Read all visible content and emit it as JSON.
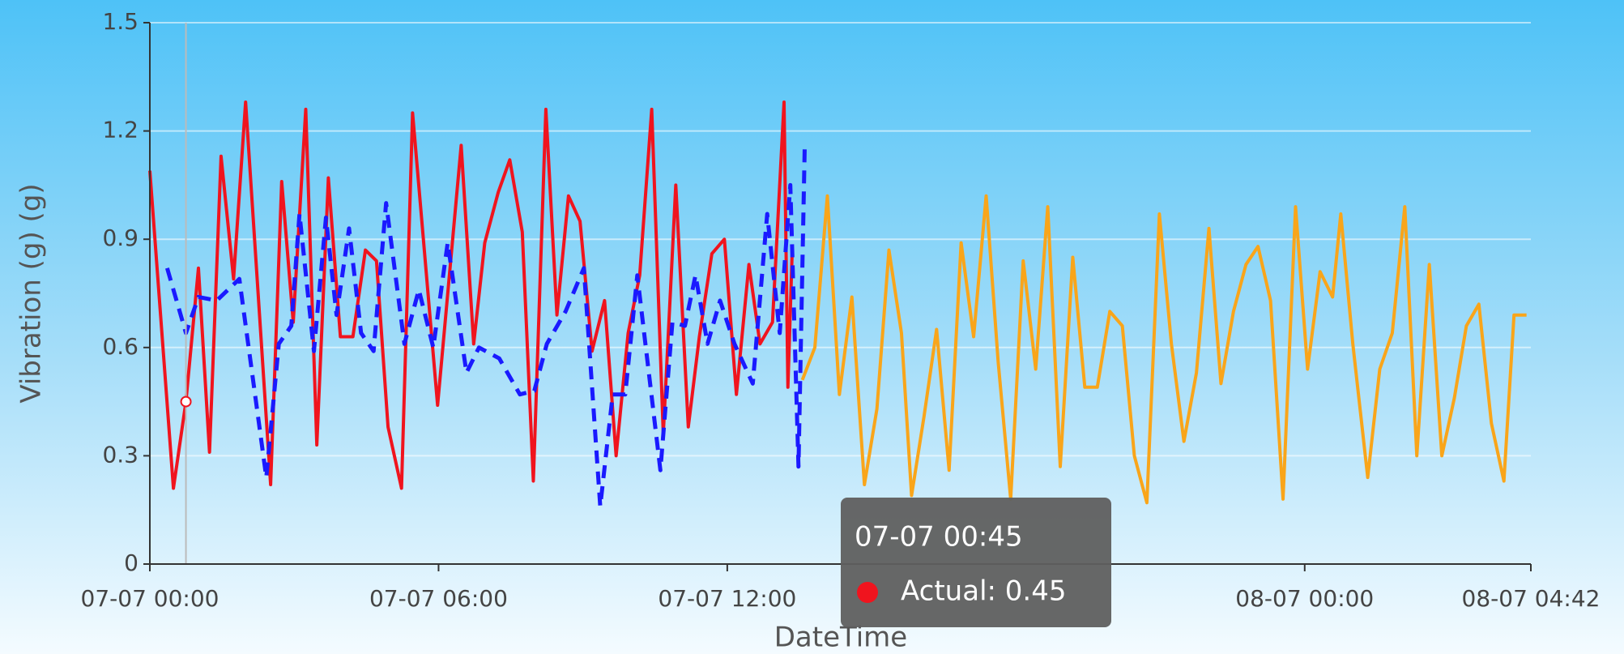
{
  "chart_data": {
    "type": "line",
    "y_label": "Vibration (g) (g)",
    "x_label": "DateTime",
    "xlim": [
      0,
      28.7
    ],
    "xticks": [
      {
        "value": 0,
        "label": "07-07 00:00"
      },
      {
        "value": 6,
        "label": "07-07 06:00"
      },
      {
        "value": 12,
        "label": "07-07 12:00"
      },
      {
        "value": 24,
        "label": "08-07 00:00"
      },
      {
        "value": 28.7,
        "label": "08-07 04:42"
      }
    ],
    "ylim": [
      0,
      1.5
    ],
    "yticks": [
      0,
      0.3,
      0.6,
      0.9,
      1.2,
      1.5
    ],
    "grid": true,
    "series": [
      {
        "name": "Actual",
        "color": "#f0141e",
        "dash": false,
        "x": [
          0,
          0.49,
          0.75,
          1.01,
          1.24,
          1.48,
          1.74,
          1.99,
          2.51,
          2.74,
          2.98,
          3.24,
          3.47,
          3.71,
          3.96,
          4.22,
          4.48,
          4.71,
          4.95,
          5.23,
          5.46,
          5.98,
          6.47,
          6.73,
          6.96,
          7.24,
          7.48,
          7.74,
          7.97,
          8.23,
          8.46,
          8.7,
          8.94,
          9.19,
          9.45,
          9.69,
          9.94,
          10.18,
          10.43,
          10.67,
          10.93,
          11.19,
          11.42,
          11.68,
          11.94,
          12.19,
          12.45,
          12.68,
          12.94,
          13.18,
          13.26,
          13.35
        ],
        "values": [
          1.09,
          0.21,
          0.45,
          0.82,
          0.31,
          1.13,
          0.79,
          1.28,
          0.22,
          1.06,
          0.67,
          1.26,
          0.33,
          1.07,
          0.63,
          0.63,
          0.87,
          0.84,
          0.38,
          0.21,
          1.25,
          0.44,
          1.16,
          0.61,
          0.89,
          1.03,
          1.12,
          0.92,
          0.23,
          1.26,
          0.69,
          1.02,
          0.95,
          0.59,
          0.73,
          0.3,
          0.64,
          0.8,
          1.26,
          0.36,
          1.05,
          0.38,
          0.63,
          0.86,
          0.9,
          0.47,
          0.83,
          0.61,
          0.67,
          1.28,
          0.49,
          0.87
        ]
      },
      {
        "color": "#1a1aff",
        "dash": true,
        "x": [
          0.36,
          0.75,
          1.01,
          1.39,
          1.86,
          2.42,
          2.68,
          2.94,
          3.11,
          3.41,
          3.66,
          3.88,
          4.14,
          4.39,
          4.65,
          4.91,
          5.29,
          5.59,
          5.89,
          6.19,
          6.58,
          6.84,
          7.26,
          7.69,
          7.99,
          8.25,
          8.64,
          9.02,
          9.36,
          9.62,
          9.88,
          10.13,
          10.61,
          10.86,
          11.12,
          11.34,
          11.59,
          11.85,
          12.15,
          12.53,
          12.83,
          13.09,
          13.31,
          13.48,
          13.61
        ],
        "values": [
          0.82,
          0.64,
          0.74,
          0.73,
          0.79,
          0.24,
          0.61,
          0.66,
          0.97,
          0.59,
          0.96,
          0.69,
          0.93,
          0.64,
          0.59,
          1.0,
          0.61,
          0.76,
          0.6,
          0.89,
          0.53,
          0.6,
          0.57,
          0.47,
          0.48,
          0.61,
          0.7,
          0.82,
          0.16,
          0.47,
          0.47,
          0.8,
          0.26,
          0.67,
          0.66,
          0.8,
          0.61,
          0.73,
          0.61,
          0.5,
          0.97,
          0.64,
          1.05,
          0.27,
          1.16
        ]
      },
      {
        "color": "#f9a51a",
        "dash": false,
        "x": [
          13.56,
          13.82,
          14.08,
          14.33,
          14.59,
          14.85,
          15.11,
          15.36,
          15.62,
          15.83,
          16.09,
          16.35,
          16.61,
          16.86,
          17.12,
          17.38,
          17.63,
          17.89,
          18.15,
          18.41,
          18.66,
          18.92,
          19.18,
          19.43,
          19.69,
          19.95,
          20.21,
          20.46,
          20.72,
          20.98,
          21.23,
          21.49,
          21.75,
          22.01,
          22.26,
          22.52,
          22.78,
          23.03,
          23.29,
          23.55,
          23.81,
          24.06,
          24.32,
          24.58,
          24.75,
          25.0,
          25.31,
          25.56,
          25.82,
          26.08,
          26.33,
          26.59,
          26.85,
          27.11,
          27.36,
          27.62,
          27.88,
          28.14,
          28.35,
          28.61
        ],
        "values": [
          0.51,
          0.6,
          1.02,
          0.47,
          0.74,
          0.22,
          0.43,
          0.87,
          0.64,
          0.19,
          0.41,
          0.65,
          0.26,
          0.89,
          0.63,
          1.02,
          0.56,
          0.18,
          0.84,
          0.54,
          0.99,
          0.27,
          0.85,
          0.49,
          0.49,
          0.7,
          0.66,
          0.3,
          0.17,
          0.97,
          0.61,
          0.34,
          0.53,
          0.93,
          0.5,
          0.7,
          0.83,
          0.88,
          0.73,
          0.18,
          0.99,
          0.54,
          0.81,
          0.74,
          0.97,
          0.61,
          0.24,
          0.54,
          0.64,
          0.99,
          0.3,
          0.83,
          0.3,
          0.46,
          0.66,
          0.72,
          0.39,
          0.23,
          0.69,
          0.69
        ]
      }
    ],
    "tooltip": {
      "title": "07-07 00:45",
      "text": "Actual: 0.45",
      "x": 0.75,
      "value": 0.45,
      "color": "#f0141e"
    }
  }
}
